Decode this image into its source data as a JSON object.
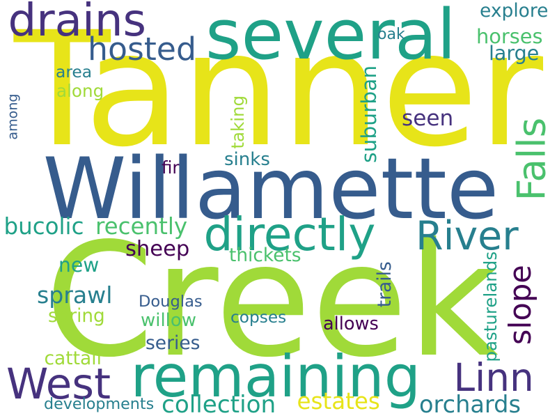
{
  "palette": {
    "yellow": "#e7e419",
    "lime": "#a0da39",
    "green": "#4ac16d",
    "teal": "#1fa187",
    "tealblue": "#277f8e",
    "blue": "#365c8d",
    "indigo": "#46327e",
    "purple": "#440154",
    "background": "#ffffff"
  },
  "words": [
    {
      "id": "tanner",
      "text": "Tanner",
      "color": "#e7e419",
      "orientation": "horizontal"
    },
    {
      "id": "creek",
      "text": "Creek",
      "color": "#a0da39",
      "orientation": "horizontal"
    },
    {
      "id": "willamette",
      "text": "Willamette",
      "color": "#365c8d",
      "orientation": "horizontal"
    },
    {
      "id": "several",
      "text": "several",
      "color": "#1fa187",
      "orientation": "horizontal"
    },
    {
      "id": "drains",
      "text": "drains",
      "color": "#46327e",
      "orientation": "horizontal"
    },
    {
      "id": "hosted",
      "text": "hosted",
      "color": "#365c8d",
      "orientation": "horizontal"
    },
    {
      "id": "remaining",
      "text": "remaining",
      "color": "#1fa187",
      "orientation": "horizontal"
    },
    {
      "id": "directly",
      "text": "directly",
      "color": "#1fa187",
      "orientation": "horizontal"
    },
    {
      "id": "river",
      "text": "River",
      "color": "#277f8e",
      "orientation": "horizontal"
    },
    {
      "id": "falls",
      "text": "Falls",
      "color": "#4ac16d",
      "orientation": "vertical"
    },
    {
      "id": "slope",
      "text": "slope",
      "color": "#440154",
      "orientation": "vertical"
    },
    {
      "id": "linn",
      "text": "Linn",
      "color": "#46327e",
      "orientation": "horizontal"
    },
    {
      "id": "west",
      "text": "West",
      "color": "#46327e",
      "orientation": "horizontal"
    },
    {
      "id": "horses",
      "text": "horses",
      "color": "#4ac16d",
      "orientation": "horizontal"
    },
    {
      "id": "large",
      "text": "large",
      "color": "#277f8e",
      "orientation": "horizontal"
    },
    {
      "id": "explore",
      "text": "explore",
      "color": "#277f8e",
      "orientation": "horizontal"
    },
    {
      "id": "oak",
      "text": "oak",
      "color": "#277f8e",
      "orientation": "horizontal"
    },
    {
      "id": "area",
      "text": "area",
      "color": "#277f8e",
      "orientation": "horizontal"
    },
    {
      "id": "along",
      "text": "along",
      "color": "#a0da39",
      "orientation": "horizontal"
    },
    {
      "id": "among",
      "text": "among",
      "color": "#365c8d",
      "orientation": "vertical"
    },
    {
      "id": "taking",
      "text": "taking",
      "color": "#a0da39",
      "orientation": "vertical"
    },
    {
      "id": "suburban",
      "text": "suburban",
      "color": "#1fa187",
      "orientation": "vertical"
    },
    {
      "id": "seen",
      "text": "seen",
      "color": "#46327e",
      "orientation": "horizontal"
    },
    {
      "id": "sinks",
      "text": "sinks",
      "color": "#277f8e",
      "orientation": "horizontal"
    },
    {
      "id": "fir",
      "text": "fir",
      "color": "#440154",
      "orientation": "horizontal"
    },
    {
      "id": "bucolic",
      "text": "bucolic",
      "color": "#1fa187",
      "orientation": "horizontal"
    },
    {
      "id": "recently",
      "text": "recently",
      "color": "#4ac16d",
      "orientation": "horizontal"
    },
    {
      "id": "sheep",
      "text": "sheep",
      "color": "#440154",
      "orientation": "horizontal"
    },
    {
      "id": "new",
      "text": "new",
      "color": "#1fa187",
      "orientation": "horizontal"
    },
    {
      "id": "thickets",
      "text": "thickets",
      "color": "#4ac16d",
      "orientation": "horizontal"
    },
    {
      "id": "sprawl",
      "text": "sprawl",
      "color": "#277f8e",
      "orientation": "horizontal"
    },
    {
      "id": "douglas",
      "text": "Douglas",
      "color": "#365c8d",
      "orientation": "horizontal"
    },
    {
      "id": "trails",
      "text": "trails",
      "color": "#365c8d",
      "orientation": "vertical"
    },
    {
      "id": "spring",
      "text": "spring",
      "color": "#a0da39",
      "orientation": "horizontal"
    },
    {
      "id": "willow",
      "text": "willow",
      "color": "#4ac16d",
      "orientation": "horizontal"
    },
    {
      "id": "copses",
      "text": "copses",
      "color": "#277f8e",
      "orientation": "horizontal"
    },
    {
      "id": "allows",
      "text": "allows",
      "color": "#440154",
      "orientation": "horizontal"
    },
    {
      "id": "pasturelands",
      "text": "pasturelands",
      "color": "#1fa187",
      "orientation": "vertical"
    },
    {
      "id": "series",
      "text": "series",
      "color": "#365c8d",
      "orientation": "horizontal"
    },
    {
      "id": "cattail",
      "text": "cattail",
      "color": "#a0da39",
      "orientation": "horizontal"
    },
    {
      "id": "developments",
      "text": "developments",
      "color": "#277f8e",
      "orientation": "horizontal"
    },
    {
      "id": "collection",
      "text": "collection",
      "color": "#1fa187",
      "orientation": "horizontal"
    },
    {
      "id": "estates",
      "text": "estates",
      "color": "#e7e419",
      "orientation": "horizontal"
    },
    {
      "id": "orchards",
      "text": "orchards",
      "color": "#277f8e",
      "orientation": "horizontal"
    }
  ]
}
